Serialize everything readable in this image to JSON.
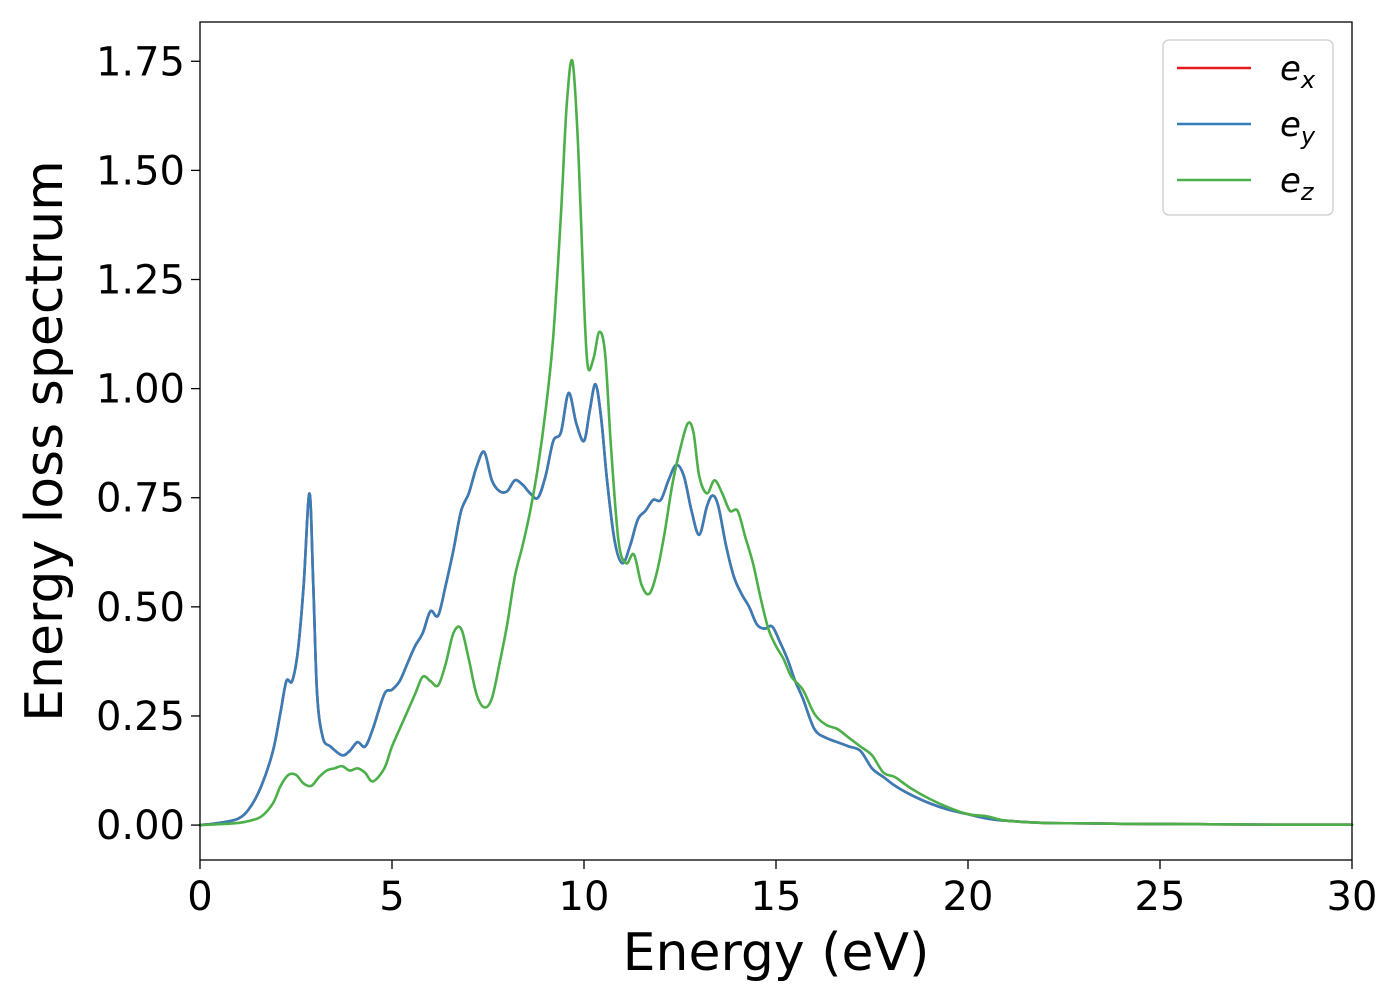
{
  "chart_data": {
    "type": "line",
    "xlabel": "Energy (eV)",
    "ylabel": "Energy loss spectrum",
    "xlim": [
      0,
      30
    ],
    "ylim": [
      -0.08,
      1.84
    ],
    "xticks": [
      0,
      5,
      10,
      15,
      20,
      25,
      30
    ],
    "xtick_labels": [
      "0",
      "5",
      "10",
      "15",
      "20",
      "25",
      "30"
    ],
    "yticks": [
      0.0,
      0.25,
      0.5,
      0.75,
      1.0,
      1.25,
      1.5,
      1.75
    ],
    "ytick_labels": [
      "0.00",
      "0.25",
      "0.50",
      "0.75",
      "1.00",
      "1.25",
      "1.50",
      "1.75"
    ],
    "grid": false,
    "legend_position": "top-right",
    "series": [
      {
        "name": "e",
        "subscript": "x",
        "color": "#e41a1c",
        "x": [
          0,
          0.5,
          1.0,
          1.3,
          1.6,
          1.9,
          2.1,
          2.25,
          2.4,
          2.55,
          2.7,
          2.85,
          2.95,
          3.05,
          3.2,
          3.4,
          3.7,
          3.9,
          4.1,
          4.3,
          4.5,
          4.8,
          5.0,
          5.2,
          5.4,
          5.6,
          5.8,
          6.0,
          6.2,
          6.4,
          6.6,
          6.8,
          7.0,
          7.2,
          7.4,
          7.6,
          7.8,
          8.0,
          8.2,
          8.4,
          8.6,
          8.8,
          9.0,
          9.2,
          9.4,
          9.6,
          9.8,
          10.0,
          10.15,
          10.3,
          10.45,
          10.6,
          10.8,
          11.0,
          11.2,
          11.4,
          11.6,
          11.8,
          12.0,
          12.2,
          12.4,
          12.6,
          12.8,
          13.0,
          13.2,
          13.35,
          13.5,
          13.7,
          13.9,
          14.1,
          14.3,
          14.5,
          14.7,
          14.9,
          15.1,
          15.3,
          15.5,
          15.7,
          16.0,
          16.3,
          16.6,
          16.9,
          17.2,
          17.5,
          17.8,
          18.1,
          18.5,
          19.0,
          19.5,
          20.0,
          20.5,
          21.0,
          22.0,
          23.0,
          24.0,
          26.0,
          28.0,
          30.0
        ],
        "y": [
          0.0,
          0.005,
          0.015,
          0.04,
          0.09,
          0.17,
          0.26,
          0.33,
          0.33,
          0.4,
          0.55,
          0.76,
          0.55,
          0.3,
          0.2,
          0.18,
          0.16,
          0.17,
          0.19,
          0.18,
          0.22,
          0.3,
          0.31,
          0.33,
          0.37,
          0.41,
          0.44,
          0.49,
          0.48,
          0.55,
          0.63,
          0.72,
          0.76,
          0.82,
          0.855,
          0.79,
          0.765,
          0.765,
          0.79,
          0.78,
          0.76,
          0.75,
          0.8,
          0.88,
          0.9,
          0.99,
          0.92,
          0.88,
          0.95,
          1.01,
          0.93,
          0.79,
          0.65,
          0.6,
          0.64,
          0.7,
          0.72,
          0.745,
          0.745,
          0.79,
          0.825,
          0.8,
          0.72,
          0.665,
          0.73,
          0.755,
          0.73,
          0.64,
          0.57,
          0.53,
          0.5,
          0.46,
          0.45,
          0.455,
          0.42,
          0.38,
          0.33,
          0.29,
          0.22,
          0.2,
          0.19,
          0.18,
          0.17,
          0.13,
          0.11,
          0.09,
          0.07,
          0.05,
          0.035,
          0.025,
          0.015,
          0.01,
          0.005,
          0.004,
          0.003,
          0.002,
          0.001,
          0.001
        ]
      },
      {
        "name": "e",
        "subscript": "y",
        "color": "#377eb8",
        "x": [
          0,
          0.5,
          1.0,
          1.3,
          1.6,
          1.9,
          2.1,
          2.25,
          2.4,
          2.55,
          2.7,
          2.85,
          2.95,
          3.05,
          3.2,
          3.4,
          3.7,
          3.9,
          4.1,
          4.3,
          4.5,
          4.8,
          5.0,
          5.2,
          5.4,
          5.6,
          5.8,
          6.0,
          6.2,
          6.4,
          6.6,
          6.8,
          7.0,
          7.2,
          7.4,
          7.6,
          7.8,
          8.0,
          8.2,
          8.4,
          8.6,
          8.8,
          9.0,
          9.2,
          9.4,
          9.6,
          9.8,
          10.0,
          10.15,
          10.3,
          10.45,
          10.6,
          10.8,
          11.0,
          11.2,
          11.4,
          11.6,
          11.8,
          12.0,
          12.2,
          12.4,
          12.6,
          12.8,
          13.0,
          13.2,
          13.35,
          13.5,
          13.7,
          13.9,
          14.1,
          14.3,
          14.5,
          14.7,
          14.9,
          15.1,
          15.3,
          15.5,
          15.7,
          16.0,
          16.3,
          16.6,
          16.9,
          17.2,
          17.5,
          17.8,
          18.1,
          18.5,
          19.0,
          19.5,
          20.0,
          20.5,
          21.0,
          22.0,
          23.0,
          24.0,
          26.0,
          28.0,
          30.0
        ],
        "y": [
          0.0,
          0.005,
          0.015,
          0.04,
          0.09,
          0.17,
          0.26,
          0.33,
          0.33,
          0.4,
          0.55,
          0.76,
          0.55,
          0.3,
          0.2,
          0.18,
          0.16,
          0.17,
          0.19,
          0.18,
          0.22,
          0.3,
          0.31,
          0.33,
          0.37,
          0.41,
          0.44,
          0.49,
          0.48,
          0.55,
          0.63,
          0.72,
          0.76,
          0.82,
          0.855,
          0.79,
          0.765,
          0.765,
          0.79,
          0.78,
          0.76,
          0.75,
          0.8,
          0.88,
          0.9,
          0.99,
          0.92,
          0.88,
          0.95,
          1.01,
          0.93,
          0.79,
          0.65,
          0.6,
          0.64,
          0.7,
          0.72,
          0.745,
          0.745,
          0.79,
          0.825,
          0.8,
          0.72,
          0.665,
          0.73,
          0.755,
          0.73,
          0.64,
          0.57,
          0.53,
          0.5,
          0.46,
          0.45,
          0.455,
          0.42,
          0.38,
          0.33,
          0.29,
          0.22,
          0.2,
          0.19,
          0.18,
          0.17,
          0.13,
          0.11,
          0.09,
          0.07,
          0.05,
          0.035,
          0.025,
          0.015,
          0.01,
          0.005,
          0.004,
          0.003,
          0.002,
          0.001,
          0.001
        ]
      },
      {
        "name": "e",
        "subscript": "z",
        "color": "#4daf4a",
        "x": [
          0,
          0.5,
          1.0,
          1.3,
          1.6,
          1.9,
          2.1,
          2.3,
          2.5,
          2.7,
          2.9,
          3.1,
          3.3,
          3.5,
          3.7,
          3.9,
          4.1,
          4.3,
          4.5,
          4.8,
          5.0,
          5.3,
          5.6,
          5.8,
          6.0,
          6.2,
          6.4,
          6.6,
          6.8,
          7.0,
          7.2,
          7.4,
          7.6,
          7.8,
          8.0,
          8.2,
          8.4,
          8.6,
          8.8,
          9.0,
          9.2,
          9.4,
          9.55,
          9.7,
          9.85,
          10.0,
          10.1,
          10.25,
          10.4,
          10.55,
          10.7,
          10.9,
          11.1,
          11.3,
          11.5,
          11.7,
          11.9,
          12.1,
          12.3,
          12.5,
          12.7,
          12.85,
          13.0,
          13.2,
          13.4,
          13.6,
          13.8,
          14.0,
          14.2,
          14.4,
          14.6,
          14.8,
          15.0,
          15.2,
          15.4,
          15.7,
          16.0,
          16.3,
          16.6,
          16.9,
          17.2,
          17.5,
          17.8,
          18.1,
          18.5,
          19.0,
          19.5,
          20.0,
          20.5,
          21.0,
          22.0,
          23.0,
          24.0,
          26.0,
          28.0,
          30.0
        ],
        "y": [
          0.0,
          0.002,
          0.005,
          0.01,
          0.02,
          0.05,
          0.09,
          0.115,
          0.115,
          0.095,
          0.09,
          0.11,
          0.125,
          0.13,
          0.135,
          0.125,
          0.13,
          0.12,
          0.1,
          0.13,
          0.18,
          0.24,
          0.3,
          0.34,
          0.33,
          0.32,
          0.37,
          0.44,
          0.45,
          0.38,
          0.3,
          0.27,
          0.29,
          0.37,
          0.46,
          0.57,
          0.64,
          0.72,
          0.82,
          0.95,
          1.12,
          1.4,
          1.65,
          1.75,
          1.55,
          1.2,
          1.05,
          1.07,
          1.13,
          1.08,
          0.87,
          0.65,
          0.6,
          0.62,
          0.55,
          0.53,
          0.58,
          0.67,
          0.78,
          0.86,
          0.92,
          0.9,
          0.8,
          0.76,
          0.79,
          0.76,
          0.72,
          0.72,
          0.66,
          0.6,
          0.52,
          0.45,
          0.41,
          0.38,
          0.34,
          0.31,
          0.255,
          0.23,
          0.22,
          0.2,
          0.18,
          0.16,
          0.12,
          0.11,
          0.085,
          0.06,
          0.04,
          0.025,
          0.02,
          0.01,
          0.005,
          0.004,
          0.003,
          0.002,
          0.001,
          0.001
        ]
      }
    ]
  }
}
